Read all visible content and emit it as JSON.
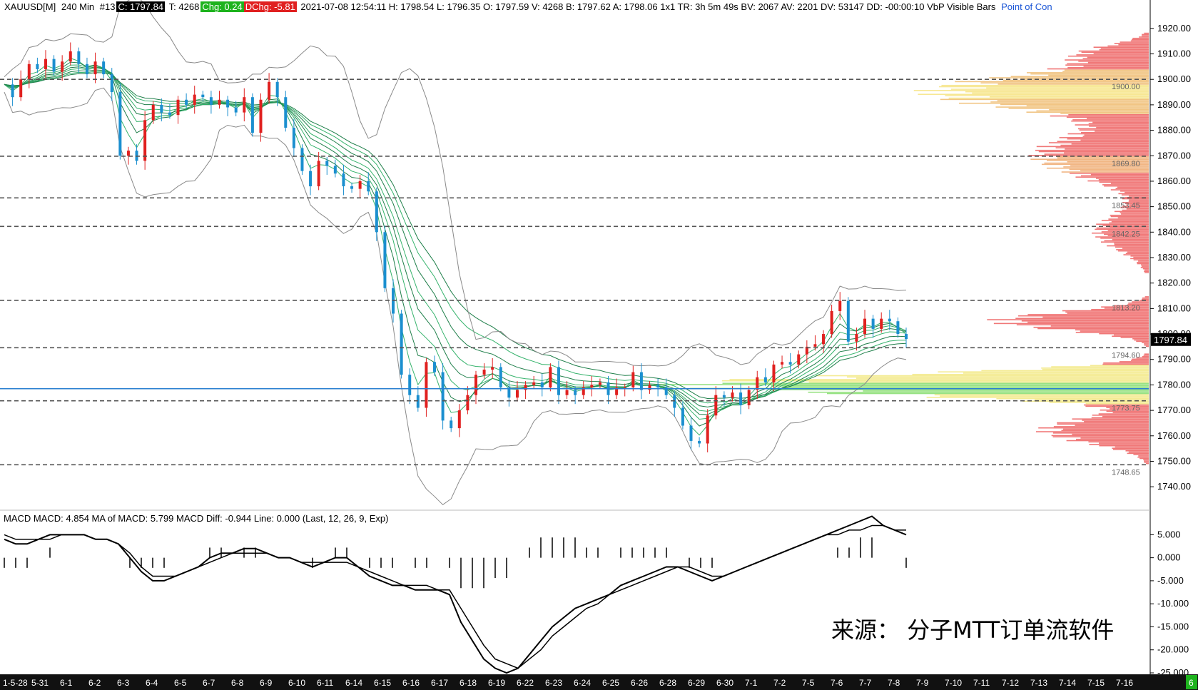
{
  "header": {
    "symbol": "XAUUSD[M]",
    "timeframe": "240 Min",
    "bar_no": "#13",
    "close": "C: 1797.84",
    "tick": "T: 4268",
    "chg": "Chg: 0.24",
    "dchg": "DChg: -5.81",
    "rest": "2021-07-08 12:54:11  H: 1798.54  L: 1796.35  O: 1797.59  V: 4268  B: 1797.62  A: 1798.06  1x1  TR: 3h 5m 49s  BV: 2067  AV: 2201  DV: 53147  DD: -00:00:10  VbP Visible Bars",
    "poc": "Point of Con"
  },
  "macd_header": "MACD   MACD: 4.854   MA of MACD: 5.799   MACD Diff: -0.944   Line: 0.000     (Last, 12, 26, 9, Exp)",
  "watermark": "来源：   分子MTT订单流软件",
  "last_price_label": "1797.84",
  "corner_badge": "6",
  "colors": {
    "up": "#e0201f",
    "down": "#1b8fcf",
    "ribbon": "#1a9a5a",
    "bands": "#8a8a8a",
    "level": "#555555",
    "poc_line": "#2a7fd0",
    "macd": "#000000"
  },
  "chart_data": [
    {
      "type": "candlestick",
      "title": "XAUUSD[M] 240 Min",
      "ylim": [
        1735,
        1925
      ],
      "yticks": [
        1740,
        1750,
        1760,
        1770,
        1780,
        1790,
        1800,
        1810,
        1820,
        1830,
        1840,
        1850,
        1860,
        1870,
        1880,
        1890,
        1900,
        1910,
        1920
      ],
      "x_categories": [
        "1-5-28",
        "5-31",
        "6-1",
        "6-2",
        "6-3",
        "6-4",
        "6-5",
        "6-7",
        "6-8",
        "6-9",
        "6-10",
        "6-11",
        "6-14",
        "6-15",
        "6-16",
        "6-17",
        "6-18",
        "6-19",
        "6-22",
        "6-23",
        "6-24",
        "6-25",
        "6-26",
        "6-28",
        "6-29",
        "6-30",
        "7-1",
        "7-2",
        "7-5",
        "7-6",
        "7-7",
        "7-8",
        "7-9",
        "7-10",
        "7-11",
        "7-12",
        "7-13",
        "7-14",
        "7-15",
        "7-16"
      ],
      "close_path": [
        1898,
        1893,
        1900,
        1906,
        1904,
        1908,
        1903,
        1907,
        1911,
        1906,
        1902,
        1907,
        1902,
        1895,
        1870,
        1872,
        1868,
        1884,
        1890,
        1887,
        1886,
        1892,
        1890,
        1894,
        1893,
        1890,
        1892,
        1889,
        1887,
        1893,
        1879,
        1892,
        1899,
        1893,
        1881,
        1873,
        1864,
        1858,
        1868,
        1866,
        1863,
        1858,
        1857,
        1860,
        1856,
        1840,
        1818,
        1808,
        1784,
        1776,
        1771,
        1789,
        1785,
        1766,
        1763,
        1770,
        1776,
        1784,
        1786,
        1787,
        1779,
        1775,
        1778,
        1780,
        1781,
        1779,
        1787,
        1776,
        1778,
        1776,
        1779,
        1780,
        1781,
        1776,
        1779,
        1779,
        1785,
        1778,
        1780,
        1779,
        1776,
        1771,
        1764,
        1758,
        1757,
        1768,
        1776,
        1775,
        1777,
        1772,
        1778,
        1783,
        1781,
        1788,
        1789,
        1788,
        1792,
        1795,
        1796,
        1800,
        1809,
        1813,
        1797,
        1800,
        1806,
        1802,
        1806,
        1805,
        1800,
        1798
      ],
      "levels": [
        1900.0,
        1869.8,
        1853.45,
        1842.25,
        1813.2,
        1794.6,
        1773.75,
        1748.65
      ],
      "poc_line": 1778.5,
      "last_price": 1797.84,
      "volume_profile_side": "right"
    },
    {
      "type": "bar",
      "title": "MACD",
      "ylim": [
        -25,
        8
      ],
      "yticks": [
        5,
        0,
        -5,
        -10,
        -15,
        -20,
        -25
      ],
      "macd": [
        4,
        3,
        3,
        4,
        5,
        5,
        5,
        5,
        4,
        4,
        3,
        0,
        -3,
        -5,
        -5,
        -4,
        -3,
        -2,
        0,
        1,
        1,
        2,
        2,
        1,
        0,
        0,
        -1,
        -2,
        -1,
        0,
        0,
        -2,
        -4,
        -5,
        -6,
        -6,
        -7,
        -7,
        -7,
        -8,
        -14,
        -18,
        -22,
        -24,
        -25,
        -24,
        -21,
        -18,
        -15,
        -13,
        -11,
        -10,
        -9,
        -8,
        -6,
        -5,
        -4,
        -3,
        -2,
        -2,
        -3,
        -4,
        -5,
        -4,
        -3,
        -2,
        -1,
        0,
        1,
        2,
        3,
        4,
        5,
        6,
        7,
        8,
        9,
        7,
        6,
        5
      ],
      "signal": [
        5,
        4,
        4,
        4,
        4,
        5,
        5,
        5,
        4,
        4,
        3,
        1,
        -2,
        -4,
        -4,
        -4,
        -3,
        -2,
        -1,
        0,
        1,
        1,
        1,
        1,
        0,
        0,
        -1,
        -1,
        -1,
        -1,
        -1,
        -2,
        -3,
        -4,
        -5,
        -6,
        -6,
        -6,
        -7,
        -7,
        -11,
        -15,
        -19,
        -22,
        -23,
        -24,
        -22,
        -20,
        -17,
        -15,
        -13,
        -11,
        -10,
        -8,
        -7,
        -6,
        -5,
        -4,
        -3,
        -2,
        -2,
        -3,
        -4,
        -4,
        -3,
        -2,
        -1,
        0,
        1,
        2,
        3,
        4,
        5,
        5,
        6,
        6,
        7,
        7,
        6,
        6
      ]
    }
  ]
}
